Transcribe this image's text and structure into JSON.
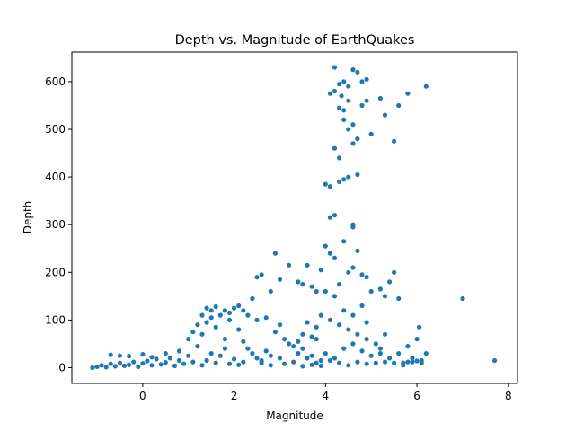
{
  "chart_data": {
    "type": "scatter",
    "title": "Depth vs. Magnitude of EarthQuakes",
    "xlabel": "Magnitude",
    "ylabel": "Depth",
    "xlim": [
      -1.55,
      8.2
    ],
    "ylim": [
      -33,
      662
    ],
    "xticks": [
      0,
      2,
      4,
      6,
      8
    ],
    "yticks": [
      0,
      100,
      200,
      300,
      400,
      500,
      600
    ],
    "grid": false,
    "legend": "none",
    "marker_color": "#1f77b4",
    "series": [
      {
        "values": [
          [
            -1.1,
            0
          ],
          [
            -1.0,
            2
          ],
          [
            -0.9,
            5
          ],
          [
            -0.8,
            1
          ],
          [
            -0.7,
            8
          ],
          [
            -0.6,
            3
          ],
          [
            -0.5,
            10
          ],
          [
            -0.4,
            4
          ],
          [
            -0.3,
            6
          ],
          [
            -0.2,
            12
          ],
          [
            -0.1,
            2
          ],
          [
            0.0,
            9
          ],
          [
            0.1,
            14
          ],
          [
            0.2,
            5
          ],
          [
            0.3,
            18
          ],
          [
            0.4,
            7
          ],
          [
            0.5,
            11
          ],
          [
            0.6,
            20
          ],
          [
            0.7,
            4
          ],
          [
            0.8,
            15
          ],
          [
            0.9,
            8
          ],
          [
            1.0,
            25
          ],
          [
            1.1,
            12
          ],
          [
            1.2,
            45
          ],
          [
            1.3,
            70
          ],
          [
            1.4,
            95
          ],
          [
            1.5,
            120
          ],
          [
            1.6,
            85
          ],
          [
            1.7,
            110
          ],
          [
            1.8,
            60
          ],
          [
            1.9,
            100
          ],
          [
            2.0,
            125
          ],
          [
            2.1,
            80
          ],
          [
            2.2,
            55
          ],
          [
            2.3,
            40
          ],
          [
            2.4,
            30
          ],
          [
            2.5,
            20
          ],
          [
            2.6,
            15
          ],
          [
            2.7,
            35
          ],
          [
            2.8,
            25
          ],
          [
            1.3,
            5
          ],
          [
            1.4,
            15
          ],
          [
            1.5,
            30
          ],
          [
            1.6,
            10
          ],
          [
            1.7,
            25
          ],
          [
            1.8,
            40
          ],
          [
            1.9,
            8
          ],
          [
            2.0,
            18
          ],
          [
            2.1,
            6
          ],
          [
            2.2,
            12
          ],
          [
            -0.7,
            27
          ],
          [
            -0.5,
            25
          ],
          [
            -0.3,
            24
          ],
          [
            0.0,
            28
          ],
          [
            0.2,
            22
          ],
          [
            0.5,
            30
          ],
          [
            0.8,
            35
          ],
          [
            1.0,
            60
          ],
          [
            1.1,
            75
          ],
          [
            1.2,
            90
          ],
          [
            1.3,
            110
          ],
          [
            1.4,
            125
          ],
          [
            1.5,
            105
          ],
          [
            1.6,
            128
          ],
          [
            1.8,
            120
          ],
          [
            1.9,
            115
          ],
          [
            2.1,
            130
          ],
          [
            2.2,
            120
          ],
          [
            2.5,
            190
          ],
          [
            2.6,
            195
          ],
          [
            2.9,
            240
          ],
          [
            3.0,
            185
          ],
          [
            3.2,
            215
          ],
          [
            2.8,
            160
          ],
          [
            2.4,
            145
          ],
          [
            2.3,
            110
          ],
          [
            2.5,
            100
          ],
          [
            2.7,
            105
          ],
          [
            2.9,
            75
          ],
          [
            3.0,
            90
          ],
          [
            3.1,
            60
          ],
          [
            3.2,
            50
          ],
          [
            3.3,
            45
          ],
          [
            3.4,
            30
          ],
          [
            3.5,
            40
          ],
          [
            3.6,
            20
          ],
          [
            3.7,
            25
          ],
          [
            3.8,
            10
          ],
          [
            3.9,
            15
          ],
          [
            3.0,
            20
          ],
          [
            2.6,
            10
          ],
          [
            2.8,
            5
          ],
          [
            3.1,
            8
          ],
          [
            3.3,
            12
          ],
          [
            3.5,
            3
          ],
          [
            3.7,
            6
          ],
          [
            3.9,
            4
          ],
          [
            3.6,
            215
          ],
          [
            3.4,
            180
          ],
          [
            3.5,
            175
          ],
          [
            3.7,
            170
          ],
          [
            3.8,
            160
          ],
          [
            3.9,
            205
          ],
          [
            3.6,
            95
          ],
          [
            3.8,
            85
          ],
          [
            3.9,
            110
          ],
          [
            3.5,
            70
          ],
          [
            3.7,
            65
          ],
          [
            3.4,
            55
          ],
          [
            3.8,
            60
          ],
          [
            4.0,
            255
          ],
          [
            4.1,
            240
          ],
          [
            4.2,
            230
          ],
          [
            4.3,
            175
          ],
          [
            4.4,
            265
          ],
          [
            4.0,
            160
          ],
          [
            4.2,
            150
          ],
          [
            4.4,
            120
          ],
          [
            4.5,
            200
          ],
          [
            4.6,
            210
          ],
          [
            4.7,
            245
          ],
          [
            4.8,
            195
          ],
          [
            4.9,
            190
          ],
          [
            5.0,
            160
          ],
          [
            5.2,
            165
          ],
          [
            5.4,
            180
          ],
          [
            5.5,
            200
          ],
          [
            5.6,
            145
          ],
          [
            5.3,
            150
          ],
          [
            4.8,
            130
          ],
          [
            4.1,
            100
          ],
          [
            4.3,
            90
          ],
          [
            4.5,
            80
          ],
          [
            4.7,
            70
          ],
          [
            4.9,
            60
          ],
          [
            5.1,
            50
          ],
          [
            5.2,
            40
          ],
          [
            4.6,
            110
          ],
          [
            4.9,
            95
          ],
          [
            5.3,
            70
          ],
          [
            4.0,
            30
          ],
          [
            4.2,
            20
          ],
          [
            4.4,
            40
          ],
          [
            4.6,
            50
          ],
          [
            4.8,
            35
          ],
          [
            5.0,
            25
          ],
          [
            5.2,
            30
          ],
          [
            5.4,
            20
          ],
          [
            4.1,
            15
          ],
          [
            4.3,
            10
          ],
          [
            4.5,
            5
          ],
          [
            4.7,
            12
          ],
          [
            4.9,
            8
          ],
          [
            5.1,
            10
          ],
          [
            5.3,
            12
          ],
          [
            5.5,
            10
          ],
          [
            5.7,
            10
          ],
          [
            5.9,
            12
          ],
          [
            6.0,
            14
          ],
          [
            6.2,
            30
          ],
          [
            5.6,
            30
          ],
          [
            5.8,
            45
          ],
          [
            6.0,
            60
          ],
          [
            6.05,
            85
          ],
          [
            5.9,
            20
          ],
          [
            6.1,
            15
          ],
          [
            5.7,
            5
          ],
          [
            5.8,
            12
          ],
          [
            6.1,
            10
          ],
          [
            4.0,
            385
          ],
          [
            4.1,
            380
          ],
          [
            4.2,
            320
          ],
          [
            4.2,
            460
          ],
          [
            4.3,
            440
          ],
          [
            4.4,
            395
          ],
          [
            4.5,
            400
          ],
          [
            4.6,
            300
          ],
          [
            4.7,
            405
          ],
          [
            4.6,
            295
          ],
          [
            4.1,
            575
          ],
          [
            4.2,
            580
          ],
          [
            4.3,
            595
          ],
          [
            4.4,
            600
          ],
          [
            4.5,
            590
          ],
          [
            4.6,
            625
          ],
          [
            4.7,
            620
          ],
          [
            4.2,
            630
          ],
          [
            4.3,
            545
          ],
          [
            4.4,
            520
          ],
          [
            4.5,
            500
          ],
          [
            4.6,
            470
          ],
          [
            4.7,
            480
          ],
          [
            4.8,
            550
          ],
          [
            4.9,
            560
          ],
          [
            5.0,
            490
          ],
          [
            5.3,
            530
          ],
          [
            5.2,
            565
          ],
          [
            5.5,
            475
          ],
          [
            5.6,
            550
          ],
          [
            5.8,
            575
          ],
          [
            4.4,
            540
          ],
          [
            4.5,
            560
          ],
          [
            4.6,
            510
          ],
          [
            4.8,
            600
          ],
          [
            4.9,
            605
          ],
          [
            6.2,
            590
          ],
          [
            4.3,
            390
          ],
          [
            4.1,
            315
          ],
          [
            4.35,
            570
          ],
          [
            7.0,
            145
          ],
          [
            7.7,
            15
          ]
        ]
      }
    ]
  }
}
